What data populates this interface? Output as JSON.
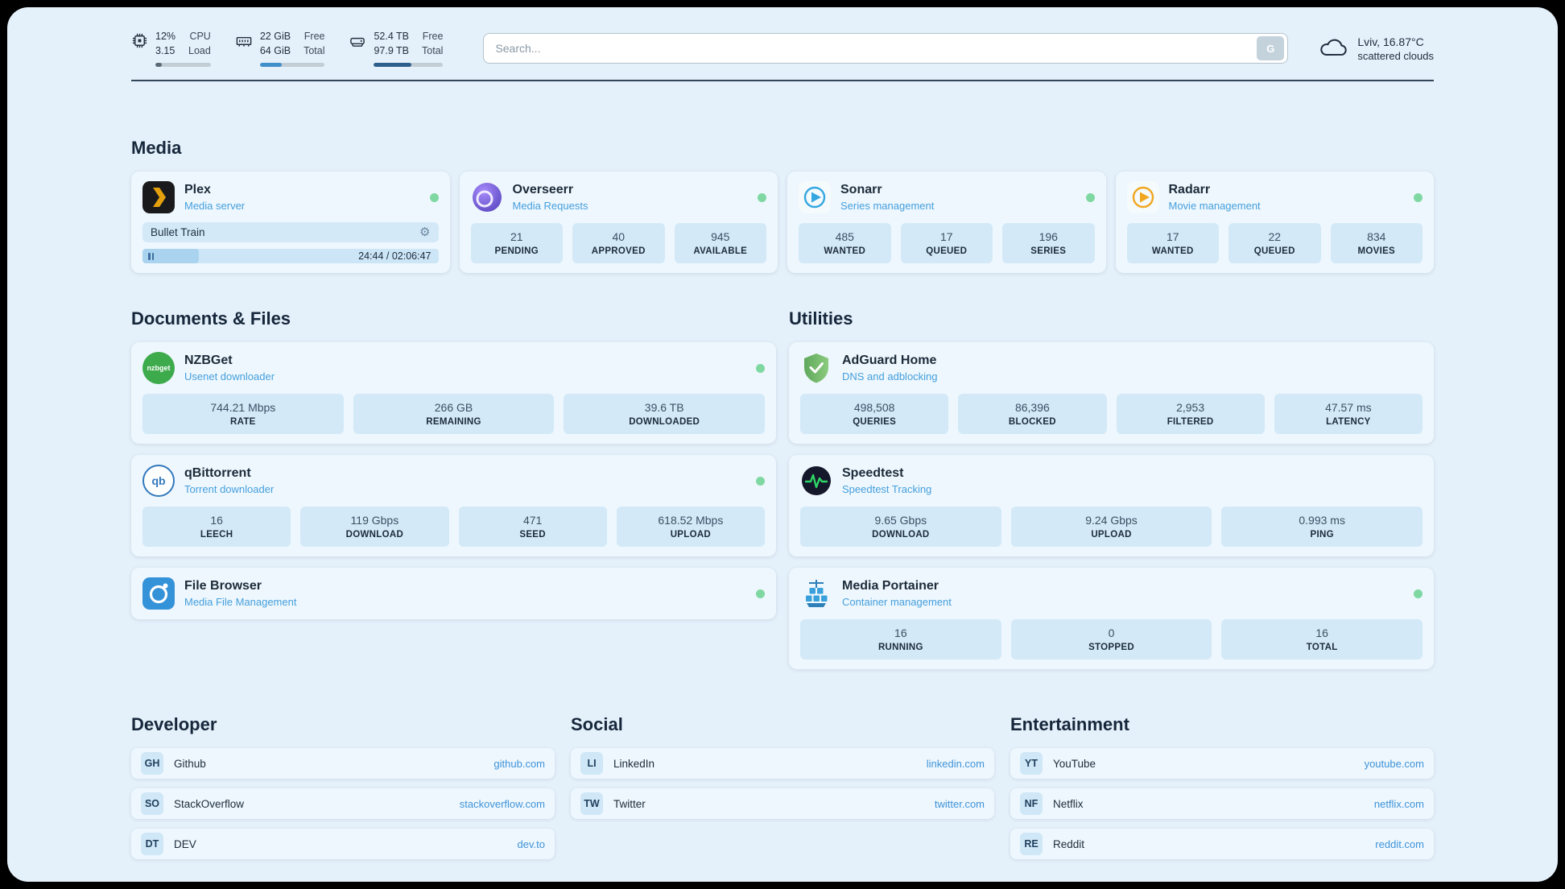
{
  "colors": {
    "page_background": "#e4f0fa",
    "card_background": "#eef7fd",
    "stat_background": "#d3e9f8",
    "accent_blue": "#459fdd",
    "status_green": "#7fd8a2",
    "link_blue": "#3f93d9"
  },
  "header": {
    "cpu": {
      "value_top": "12%",
      "value_bottom": "3.15",
      "label_top": "CPU",
      "label_bottom": "Load",
      "progress_percent": 12
    },
    "memory": {
      "value_top": "22 GiB",
      "value_bottom": "64 GiB",
      "label_top": "Free",
      "label_bottom": "Total",
      "progress_percent": 34
    },
    "disk": {
      "value_top": "52.4 TB",
      "value_bottom": "97.9 TB",
      "label_top": "Free",
      "label_bottom": "Total",
      "progress_percent": 54
    },
    "search": {
      "placeholder": "Search...",
      "engine_button": "G"
    },
    "weather": {
      "location": "Lviv, 16.87°C",
      "condition": "scattered clouds"
    }
  },
  "sections": {
    "media": {
      "title": "Media",
      "plex": {
        "name": "Plex",
        "subtitle": "Media server",
        "now_playing": "Bullet Train",
        "time": "24:44 / 02:06:47",
        "progress_percent": 19
      },
      "overseerr": {
        "name": "Overseerr",
        "subtitle": "Media Requests",
        "stats": [
          {
            "value": "21",
            "label": "PENDING"
          },
          {
            "value": "40",
            "label": "APPROVED"
          },
          {
            "value": "945",
            "label": "AVAILABLE"
          }
        ]
      },
      "sonarr": {
        "name": "Sonarr",
        "subtitle": "Series management",
        "stats": [
          {
            "value": "485",
            "label": "WANTED"
          },
          {
            "value": "17",
            "label": "QUEUED"
          },
          {
            "value": "196",
            "label": "SERIES"
          }
        ]
      },
      "radarr": {
        "name": "Radarr",
        "subtitle": "Movie management",
        "stats": [
          {
            "value": "17",
            "label": "WANTED"
          },
          {
            "value": "22",
            "label": "QUEUED"
          },
          {
            "value": "834",
            "label": "MOVIES"
          }
        ]
      }
    },
    "documents": {
      "title": "Documents & Files",
      "nzbget": {
        "name": "NZBGet",
        "subtitle": "Usenet downloader",
        "icon_label": "nzbget",
        "stats": [
          {
            "value": "744.21 Mbps",
            "label": "RATE"
          },
          {
            "value": "266 GB",
            "label": "REMAINING"
          },
          {
            "value": "39.6 TB",
            "label": "DOWNLOADED"
          }
        ]
      },
      "qbittorrent": {
        "name": "qBittorrent",
        "subtitle": "Torrent downloader",
        "icon_label": "qb",
        "stats": [
          {
            "value": "16",
            "label": "LEECH"
          },
          {
            "value": "119 Gbps",
            "label": "DOWNLOAD"
          },
          {
            "value": "471",
            "label": "SEED"
          },
          {
            "value": "618.52 Mbps",
            "label": "UPLOAD"
          }
        ]
      },
      "filebrowser": {
        "name": "File Browser",
        "subtitle": "Media File Management"
      }
    },
    "utilities": {
      "title": "Utilities",
      "adguard": {
        "name": "AdGuard Home",
        "subtitle": "DNS and adblocking",
        "stats": [
          {
            "value": "498,508",
            "label": "QUERIES"
          },
          {
            "value": "86,396",
            "label": "BLOCKED"
          },
          {
            "value": "2,953",
            "label": "FILTERED"
          },
          {
            "value": "47.57 ms",
            "label": "LATENCY"
          }
        ]
      },
      "speedtest": {
        "name": "Speedtest",
        "subtitle": "Speedtest Tracking",
        "stats": [
          {
            "value": "9.65 Gbps",
            "label": "DOWNLOAD"
          },
          {
            "value": "9.24 Gbps",
            "label": "UPLOAD"
          },
          {
            "value": "0.993 ms",
            "label": "PING"
          }
        ]
      },
      "portainer": {
        "name": "Media Portainer",
        "subtitle": "Container management",
        "stats": [
          {
            "value": "16",
            "label": "RUNNING"
          },
          {
            "value": "0",
            "label": "STOPPED"
          },
          {
            "value": "16",
            "label": "TOTAL"
          }
        ]
      }
    },
    "bookmarks": [
      {
        "title": "Developer",
        "items": [
          {
            "abbr": "GH",
            "name": "Github",
            "url": "github.com"
          },
          {
            "abbr": "SO",
            "name": "StackOverflow",
            "url": "stackoverflow.com"
          },
          {
            "abbr": "DT",
            "name": "DEV",
            "url": "dev.to"
          }
        ]
      },
      {
        "title": "Social",
        "items": [
          {
            "abbr": "LI",
            "name": "LinkedIn",
            "url": "linkedin.com"
          },
          {
            "abbr": "TW",
            "name": "Twitter",
            "url": "twitter.com"
          }
        ]
      },
      {
        "title": "Entertainment",
        "items": [
          {
            "abbr": "YT",
            "name": "YouTube",
            "url": "youtube.com"
          },
          {
            "abbr": "NF",
            "name": "Netflix",
            "url": "netflix.com"
          },
          {
            "abbr": "RE",
            "name": "Reddit",
            "url": "reddit.com"
          }
        ]
      }
    ]
  }
}
